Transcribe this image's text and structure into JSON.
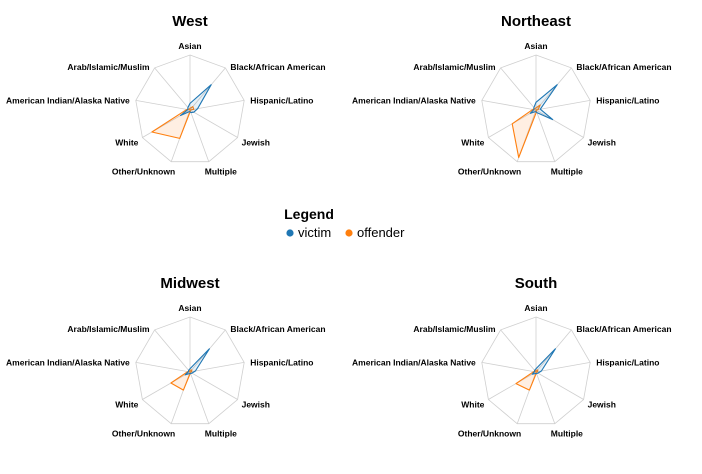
{
  "legend": {
    "title": "Legend",
    "items": [
      {
        "label": "victim",
        "color": "#1f77b4"
      },
      {
        "label": "offender",
        "color": "#ff7f0e"
      }
    ]
  },
  "chart_data": [
    {
      "type": "radar",
      "title": "West",
      "axes": [
        "Asian",
        "Black/African American",
        "Hispanic/Latino",
        "Jewish",
        "Multiple",
        "Other/Unknown",
        "White",
        "American Indian/Alaska Native",
        "Arab/Islamic/Muslim"
      ],
      "range": [
        0,
        1
      ],
      "series": [
        {
          "name": "victim",
          "values": [
            0.12,
            0.6,
            0.14,
            0.08,
            0.05,
            0.03,
            0.2,
            0.04,
            0.06
          ]
        },
        {
          "name": "offender",
          "values": [
            0.03,
            0.08,
            0.07,
            0.0,
            0.02,
            0.55,
            0.8,
            0.06,
            0.02
          ]
        }
      ]
    },
    {
      "type": "radar",
      "title": "Northeast",
      "axes": [
        "Asian",
        "Black/African American",
        "Hispanic/Latino",
        "Jewish",
        "Multiple",
        "Other/Unknown",
        "White",
        "American Indian/Alaska Native",
        "Arab/Islamic/Muslim"
      ],
      "range": [
        0,
        1
      ],
      "series": [
        {
          "name": "victim",
          "values": [
            0.14,
            0.6,
            0.08,
            0.35,
            0.05,
            0.03,
            0.12,
            0.04,
            0.06
          ]
        },
        {
          "name": "offender",
          "values": [
            0.04,
            0.12,
            0.04,
            0.0,
            0.03,
            0.92,
            0.5,
            0.06,
            0.03
          ]
        }
      ]
    },
    {
      "type": "radar",
      "title": "Midwest",
      "axes": [
        "Asian",
        "Black/African American",
        "Hispanic/Latino",
        "Jewish",
        "Multiple",
        "Other/Unknown",
        "White",
        "American Indian/Alaska Native",
        "Arab/Islamic/Muslim"
      ],
      "range": [
        0,
        1
      ],
      "series": [
        {
          "name": "victim",
          "values": [
            0.06,
            0.55,
            0.1,
            0.04,
            0.03,
            0.03,
            0.1,
            0.03,
            0.04
          ]
        },
        {
          "name": "offender",
          "values": [
            0.03,
            0.05,
            0.03,
            0.0,
            0.02,
            0.35,
            0.4,
            0.04,
            0.02
          ]
        }
      ]
    },
    {
      "type": "radar",
      "title": "South",
      "axes": [
        "Asian",
        "Black/African American",
        "Hispanic/Latino",
        "Jewish",
        "Multiple",
        "Other/Unknown",
        "White",
        "American Indian/Alaska Native",
        "Arab/Islamic/Muslim"
      ],
      "range": [
        0,
        1
      ],
      "series": [
        {
          "name": "victim",
          "values": [
            0.06,
            0.55,
            0.1,
            0.04,
            0.03,
            0.03,
            0.08,
            0.03,
            0.04
          ]
        },
        {
          "name": "offender",
          "values": [
            0.03,
            0.05,
            0.03,
            0.0,
            0.02,
            0.35,
            0.42,
            0.04,
            0.02
          ]
        }
      ]
    }
  ]
}
